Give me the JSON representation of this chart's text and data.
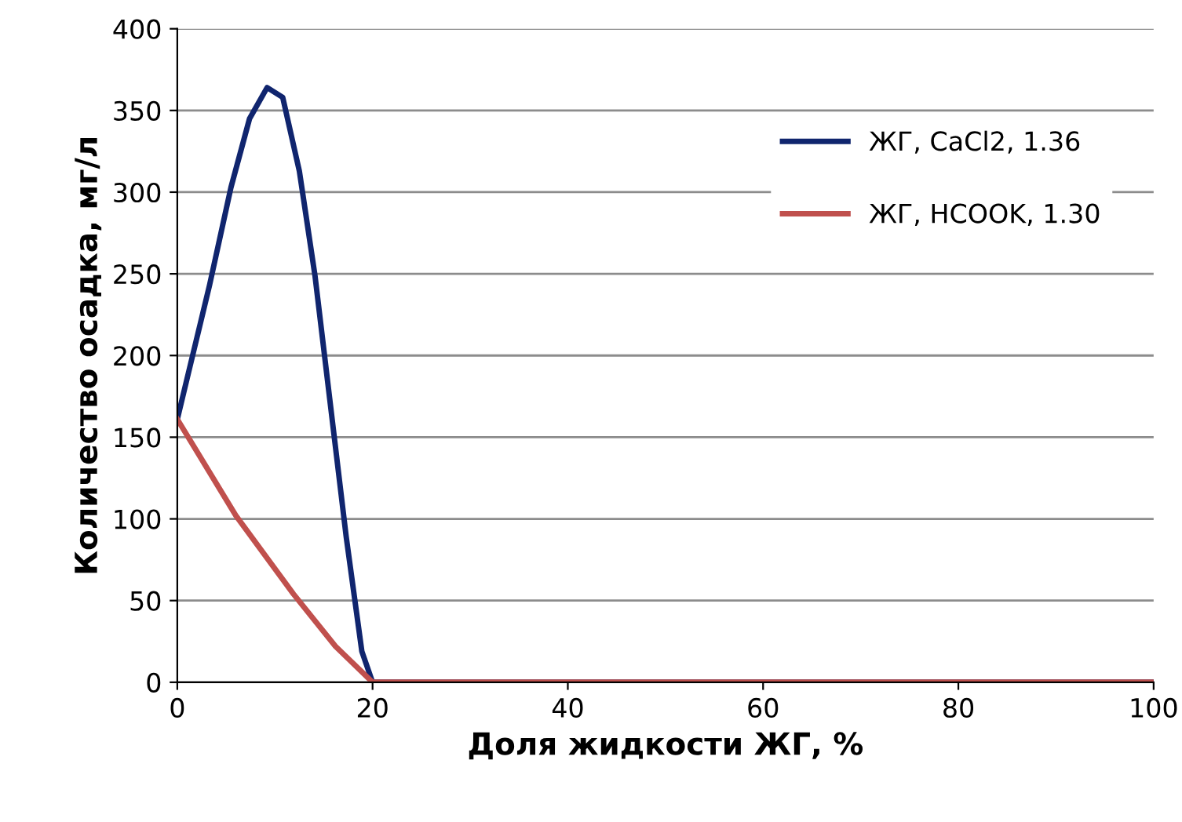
{
  "chart_data": {
    "type": "line",
    "xlabel": "Доля жидкости ЖГ, %",
    "ylabel": "Количество осадка, мг/л",
    "xlim": [
      0,
      100
    ],
    "xticks": [
      0,
      20,
      40,
      60,
      80,
      100
    ],
    "ylim": [
      0,
      400
    ],
    "yticks": [
      0,
      50,
      100,
      150,
      200,
      250,
      300,
      350,
      400
    ],
    "grid": "y",
    "legend": "top right",
    "marker": "none",
    "line_style": "solid",
    "series": [
      {
        "name": "ЖГ, CaCl2, 1.36",
        "color": "#10256e",
        "x": [
          0,
          3.3,
          5.5,
          7.4,
          9.2,
          10.8,
          12.5,
          14.1,
          15.7,
          17.3,
          18.9,
          20,
          30,
          100
        ],
        "values": [
          161,
          243,
          303,
          345,
          364,
          358,
          313,
          249,
          169,
          89,
          19,
          0,
          0,
          0
        ]
      },
      {
        "name": "ЖГ, HCOOK, 1.30",
        "color": "#c0504d",
        "x": [
          0,
          6,
          11.9,
          16.2,
          20,
          30,
          100
        ],
        "values": [
          161,
          102,
          54,
          22,
          0,
          0,
          0
        ]
      }
    ]
  }
}
